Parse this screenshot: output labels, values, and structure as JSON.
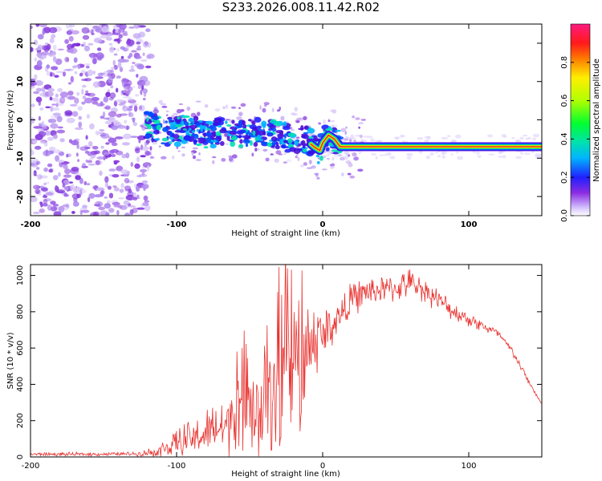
{
  "title": "S233.2026.008.11.42.R02",
  "colors": {
    "snr_line": "#e8322f",
    "track": "#e8322f"
  },
  "chart_data": [
    {
      "type": "heatmap",
      "xlabel": "Height of straight line (km)",
      "ylabel": "Frequency (Hz)",
      "xlim": [
        -200,
        150
      ],
      "ylim": [
        -25,
        25
      ],
      "xticks": [
        -200,
        -100,
        0,
        100
      ],
      "yticks": [
        -20,
        -10,
        0,
        10,
        20
      ],
      "xtick_labels": [
        "-200",
        "-100",
        "0",
        "100"
      ],
      "ytick_labels": [
        "-20",
        "-10",
        "0",
        "10",
        "20"
      ],
      "colorbar": {
        "label": "Normalized spectral amplitude",
        "range": [
          0.0,
          1.0
        ],
        "ticks": [
          0.0,
          0.2,
          0.4,
          0.6,
          0.8
        ],
        "tick_labels": [
          "0.0",
          "0.2",
          "0.4",
          "0.6",
          "0.8"
        ]
      },
      "noise_region_x": [
        -200,
        -122
      ],
      "signal_track": {
        "x": [
          -122,
          -110,
          -100,
          -90,
          -80,
          -70,
          -60,
          -50,
          -40,
          -30,
          -20,
          -12,
          -6,
          -2,
          0,
          4,
          8,
          12,
          20,
          40,
          60,
          80,
          100,
          120,
          150
        ],
        "frequency_hz": [
          -1,
          -3,
          -3,
          -2,
          -4,
          -3,
          -4,
          -3,
          -3,
          -4,
          -5,
          -5,
          -7,
          -8,
          -6,
          -4,
          -5,
          -7,
          -7,
          -7,
          -7,
          -7,
          -7,
          -7,
          -7
        ]
      }
    },
    {
      "type": "line",
      "xlabel": "Height of straight line (km)",
      "ylabel": "SNR (10 * v/v)",
      "xlim": [
        -200,
        150
      ],
      "ylim": [
        0,
        1060
      ],
      "xticks": [
        -200,
        -100,
        0,
        100
      ],
      "yticks": [
        0,
        200,
        400,
        600,
        800,
        1000
      ],
      "xtick_labels": [
        "-200",
        "-100",
        "0",
        "100"
      ],
      "ytick_labels": [
        "0",
        "200",
        "400",
        "600",
        "800",
        "1000"
      ],
      "series": [
        {
          "name": "SNR",
          "x": [
            -200,
            -180,
            -160,
            -140,
            -125,
            -115,
            -105,
            -95,
            -85,
            -75,
            -65,
            -55,
            -45,
            -35,
            -25,
            -15,
            -10,
            -5,
            0,
            10,
            20,
            30,
            40,
            50,
            60,
            70,
            80,
            90,
            100,
            110,
            120,
            130,
            140,
            150
          ],
          "values": [
            15,
            15,
            15,
            16,
            18,
            30,
            55,
            90,
            110,
            150,
            170,
            210,
            260,
            330,
            420,
            520,
            600,
            650,
            670,
            760,
            870,
            910,
            920,
            930,
            960,
            920,
            860,
            800,
            760,
            720,
            680,
            580,
            430,
            290
          ],
          "spike_amplitude": [
            12,
            12,
            12,
            12,
            15,
            40,
            70,
            110,
            130,
            170,
            220,
            260,
            330,
            380,
            440,
            480,
            300,
            260,
            200,
            120,
            110,
            100,
            90,
            90,
            90,
            80,
            70,
            60,
            50,
            40,
            30,
            30,
            20,
            10
          ]
        }
      ]
    }
  ]
}
